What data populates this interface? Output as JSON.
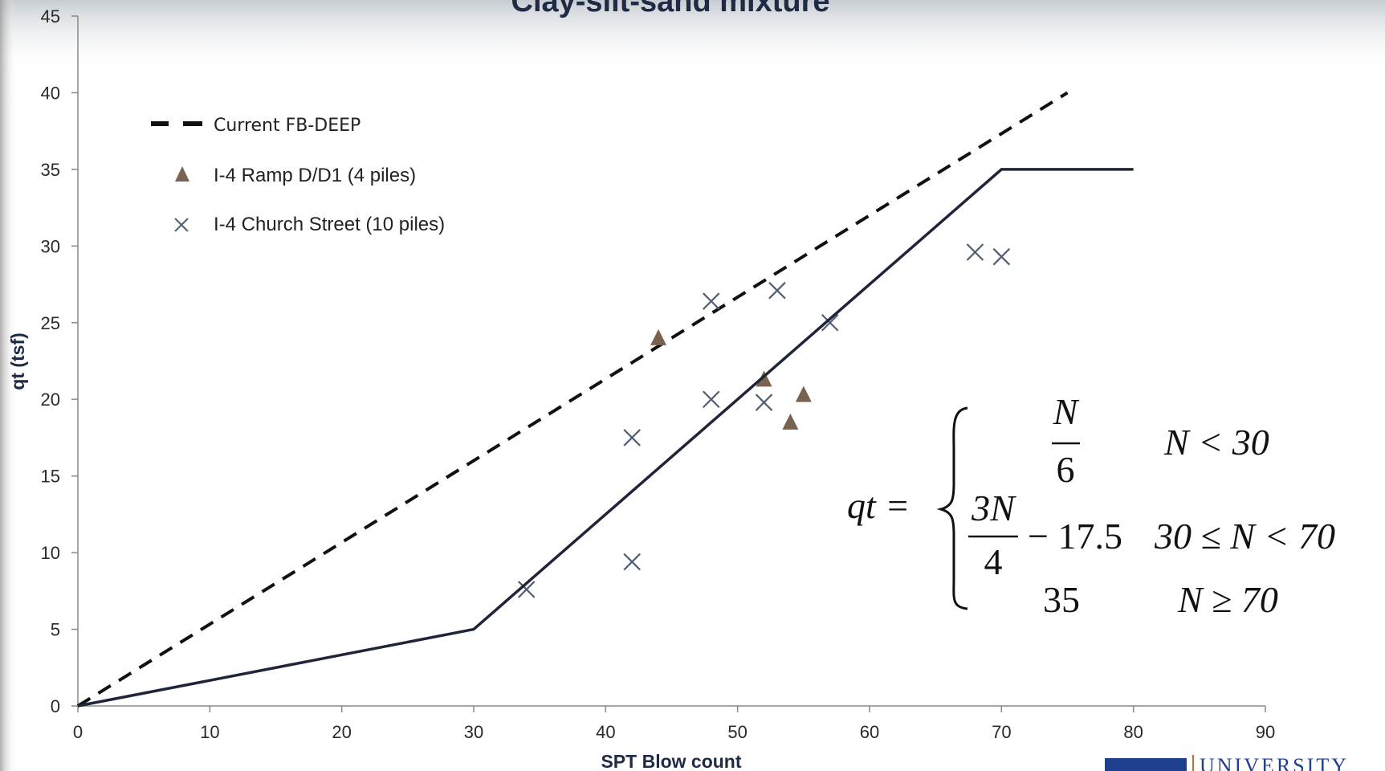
{
  "chart_data": {
    "type": "scatter",
    "title": "Clay-silt-sand mixture",
    "xlabel": "SPT Blow count",
    "ylabel": "qt (tsf)",
    "xlim": [
      0,
      90
    ],
    "ylim": [
      0,
      45
    ],
    "x_ticks": [
      "0",
      "10",
      "20",
      "30",
      "40",
      "50",
      "60",
      "70",
      "80",
      "90"
    ],
    "y_ticks": [
      "0",
      "5",
      "10",
      "15",
      "20",
      "25",
      "30",
      "35",
      "40",
      "45"
    ],
    "grid": false,
    "legend_position": "top-left",
    "series": [
      {
        "name": "Current FB-DEEP",
        "kind": "line",
        "style": "dashed",
        "color": "#111111",
        "points": [
          [
            0,
            0
          ],
          [
            75,
            40
          ]
        ]
      },
      {
        "name": "I-4 Ramp D/D1 (4 piles)",
        "kind": "scatter",
        "marker": "triangle",
        "color": "#7a6250",
        "points": [
          [
            44,
            24.0
          ],
          [
            52,
            21.3
          ],
          [
            55,
            20.3
          ],
          [
            54,
            18.5
          ]
        ]
      },
      {
        "name": "I-4 Church Street (10 piles)",
        "kind": "scatter",
        "marker": "x",
        "color": "#4f5f72",
        "points": [
          [
            34,
            7.6
          ],
          [
            42,
            9.4
          ],
          [
            42,
            17.5
          ],
          [
            48,
            20.0
          ],
          [
            48,
            26.4
          ],
          [
            52,
            19.8
          ],
          [
            53,
            27.1
          ],
          [
            57,
            25.0
          ],
          [
            68,
            29.6
          ],
          [
            70,
            29.3
          ]
        ]
      },
      {
        "kind": "line",
        "style": "solid",
        "color": "#1f2438",
        "points": [
          [
            0,
            0
          ],
          [
            30,
            5
          ],
          [
            70,
            35
          ],
          [
            80,
            35
          ]
        ]
      }
    ],
    "annotation": {
      "lhs": "qt =",
      "cases": [
        {
          "num": "N",
          "den": "6",
          "condition": "N < 30"
        },
        {
          "num": "3N",
          "den": "4",
          "suffix": "− 17.5",
          "condition": "30 ≤ N < 70"
        },
        {
          "value": "35",
          "condition": "N ≥ 70"
        }
      ]
    }
  },
  "logo": {
    "text": "UNIVERSITY"
  }
}
